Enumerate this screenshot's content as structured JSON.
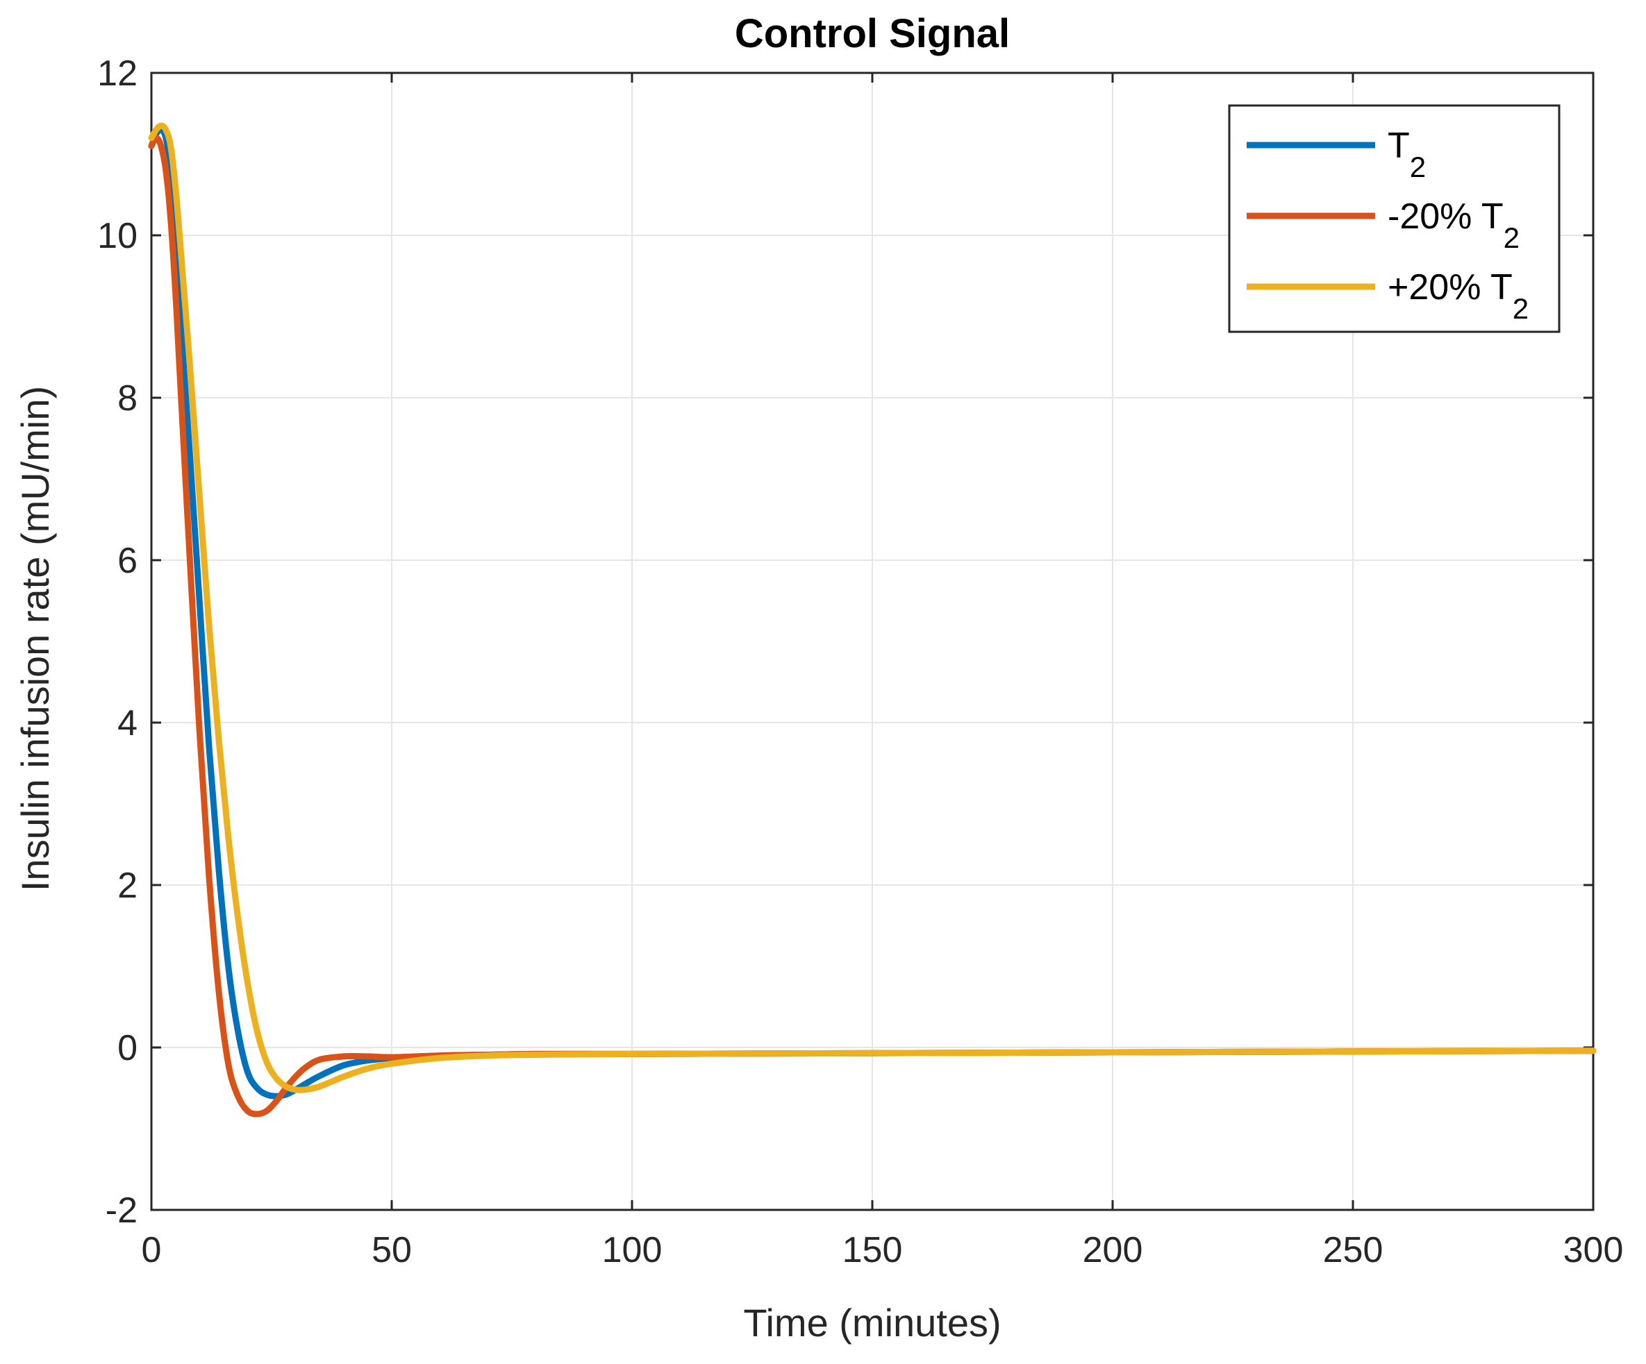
{
  "chart_data": {
    "type": "line",
    "title": "Control Signal",
    "xlabel": "Time (minutes)",
    "ylabel": "Insulin infusion rate (mU/min)",
    "xlim": [
      0,
      300
    ],
    "ylim": [
      -2,
      12
    ],
    "xticks": [
      0,
      50,
      100,
      150,
      200,
      250,
      300
    ],
    "yticks": [
      -2,
      0,
      2,
      4,
      6,
      8,
      10,
      12
    ],
    "grid": true,
    "legend_position": "top-right",
    "series": [
      {
        "name": "T",
        "name_subscript": "2",
        "color": "#0072BD",
        "x": [
          0,
          1,
          2,
          3,
          4,
          5,
          6,
          8,
          10,
          12,
          14,
          16,
          18,
          20,
          22,
          24,
          26,
          28,
          30,
          32,
          35,
          40,
          45,
          50,
          60,
          70,
          80,
          100,
          150,
          200,
          250,
          300
        ],
        "y": [
          11.1,
          11.25,
          11.3,
          11.2,
          10.8,
          10.0,
          9.0,
          7.3,
          5.5,
          3.7,
          2.2,
          1.0,
          0.2,
          -0.3,
          -0.5,
          -0.58,
          -0.6,
          -0.58,
          -0.52,
          -0.45,
          -0.35,
          -0.22,
          -0.16,
          -0.13,
          -0.1,
          -0.09,
          -0.08,
          -0.08,
          -0.07,
          -0.06,
          -0.05,
          -0.04
        ]
      },
      {
        "name": "-20% T",
        "name_subscript": "2",
        "color": "#D95319",
        "x": [
          0,
          1,
          2,
          3,
          4,
          5,
          6,
          8,
          10,
          12,
          14,
          16,
          18,
          20,
          22,
          24,
          26,
          28,
          30,
          32,
          35,
          40,
          45,
          50,
          60,
          70,
          80,
          100,
          150,
          200,
          250,
          300
        ],
        "y": [
          11.1,
          11.2,
          11.1,
          10.8,
          10.2,
          9.3,
          8.2,
          6.0,
          3.9,
          2.1,
          0.7,
          -0.2,
          -0.6,
          -0.78,
          -0.82,
          -0.78,
          -0.66,
          -0.5,
          -0.36,
          -0.25,
          -0.15,
          -0.11,
          -0.11,
          -0.12,
          -0.1,
          -0.09,
          -0.08,
          -0.08,
          -0.07,
          -0.06,
          -0.05,
          -0.04
        ]
      },
      {
        "name": "+20% T",
        "name_subscript": "2",
        "color": "#EDB120",
        "x": [
          0,
          1,
          2,
          3,
          4,
          5,
          6,
          8,
          10,
          12,
          14,
          16,
          18,
          20,
          22,
          24,
          26,
          28,
          30,
          32,
          35,
          40,
          45,
          50,
          60,
          70,
          80,
          100,
          150,
          200,
          250,
          300
        ],
        "y": [
          11.2,
          11.3,
          11.35,
          11.3,
          11.1,
          10.6,
          9.9,
          8.4,
          6.8,
          5.2,
          3.8,
          2.6,
          1.6,
          0.8,
          0.2,
          -0.18,
          -0.38,
          -0.48,
          -0.52,
          -0.52,
          -0.48,
          -0.36,
          -0.26,
          -0.2,
          -0.13,
          -0.1,
          -0.09,
          -0.08,
          -0.07,
          -0.06,
          -0.05,
          -0.04
        ]
      }
    ]
  }
}
